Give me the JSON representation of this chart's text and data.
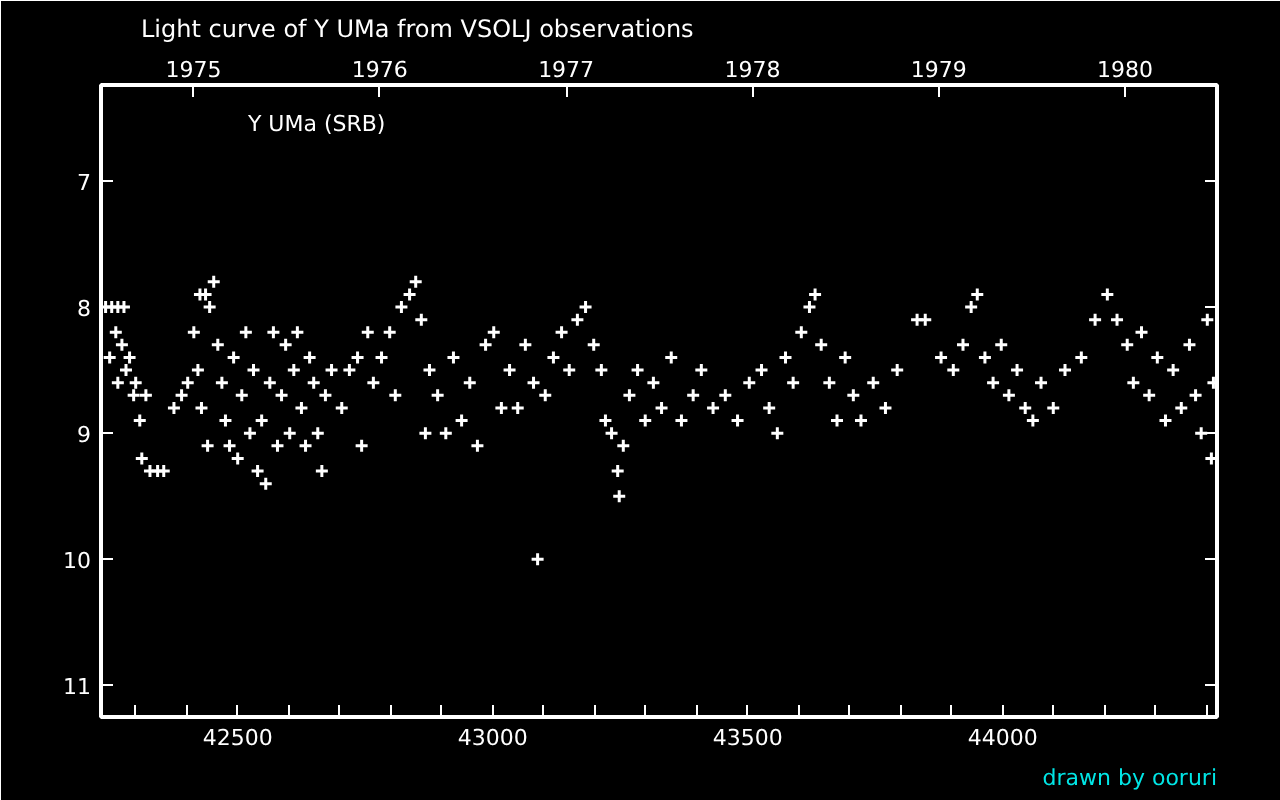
{
  "chart_data": {
    "type": "scatter",
    "title": "Light curve of Y UMa from VSOLJ observations",
    "annotations": [
      "Y UMa (SRB)",
      "drawn by ooruri"
    ],
    "marker": "cross",
    "grid": false,
    "xlim": [
      42232,
      44420
    ],
    "xticks": [
      {
        "value": 42300,
        "label": null
      },
      {
        "value": 42400,
        "label": null
      },
      42500,
      {
        "value": 42600,
        "label": null
      },
      {
        "value": 42700,
        "label": null
      },
      {
        "value": 42800,
        "label": null
      },
      {
        "value": 42900,
        "label": null
      },
      43000,
      {
        "value": 43100,
        "label": null
      },
      {
        "value": 43200,
        "label": null
      },
      {
        "value": 43300,
        "label": null
      },
      {
        "value": 43400,
        "label": null
      },
      43500,
      {
        "value": 43600,
        "label": null
      },
      {
        "value": 43700,
        "label": null
      },
      {
        "value": 43800,
        "label": null
      },
      {
        "value": 43900,
        "label": null
      },
      44000,
      {
        "value": 44100,
        "label": null
      },
      {
        "value": 44200,
        "label": null
      },
      {
        "value": 44300,
        "label": null
      },
      {
        "value": 44400,
        "label": null
      }
    ],
    "x2lim": [
      1974.503,
      1980.494
    ],
    "x2ticks": [
      1975,
      1976,
      1977,
      1978,
      1979,
      1980
    ],
    "ylim": [
      11.25,
      6.24
    ],
    "yticks": [
      7,
      8,
      9,
      10,
      11
    ],
    "series": [
      {
        "color": "#ffffff",
        "x": [
          42241,
          42253,
          42265,
          42277,
          42249,
          42261,
          42265,
          42273,
          42281,
          42288,
          42296,
          42300,
          42308,
          42312,
          42328,
          42343,
          42355,
          42320,
          42375,
          42390,
          42402,
          42414,
          42426,
          42437,
          42445,
          42453,
          42422,
          42429,
          42441,
          42461,
          42469,
          42476,
          42484,
          42492,
          42500,
          42508,
          42516,
          42524,
          42531,
          42539,
          42547,
          42555,
          42563,
          42570,
          42578,
          42586,
          42594,
          42602,
          42610,
          42617,
          42625,
          42633,
          42641,
          42649,
          42657,
          42665,
          42672,
          42684,
          42704,
          42719,
          42735,
          42743,
          42755,
          42766,
          42782,
          42798,
          42809,
          42821,
          42837,
          42849,
          42860,
          42868,
          42876,
          42892,
          42908,
          42923,
          42939,
          42955,
          42970,
          42986,
          43002,
          43017,
          43033,
          43049,
          43064,
          43080,
          43088,
          43103,
          43119,
          43135,
          43150,
          43166,
          43182,
          43198,
          43213,
          43221,
          43233,
          43245,
          43248,
          43256,
          43268,
          43284,
          43299,
          43315,
          43331,
          43350,
          43370,
          43393,
          43409,
          43432,
          43456,
          43480,
          43503,
          43527,
          43542,
          43558,
          43574,
          43589,
          43605,
          43621,
          43632,
          43644,
          43660,
          43675,
          43691,
          43707,
          43722,
          43746,
          43770,
          43793,
          43832,
          43848,
          43879,
          43903,
          43922,
          43938,
          43950,
          43965,
          43981,
          43997,
          44012,
          44028,
          44044,
          44059,
          44075,
          44099,
          44122,
          44154,
          44181,
          44205,
          44224,
          44244,
          44256,
          44272,
          44287,
          44303,
          44319,
          44334,
          44350,
          44366,
          44378,
          44389,
          44401,
          44409,
          44413
        ],
        "values": [
          8.0,
          8.0,
          8.0,
          8.0,
          8.4,
          8.2,
          8.6,
          8.3,
          8.5,
          8.4,
          8.7,
          8.6,
          8.9,
          9.2,
          9.3,
          9.3,
          9.3,
          8.7,
          8.8,
          8.7,
          8.6,
          8.2,
          7.9,
          7.9,
          8.0,
          7.8,
          8.5,
          8.8,
          9.1,
          8.3,
          8.6,
          8.9,
          9.1,
          8.4,
          9.2,
          8.7,
          8.2,
          9.0,
          8.5,
          9.3,
          8.9,
          9.4,
          8.6,
          8.2,
          9.1,
          8.7,
          8.3,
          9.0,
          8.5,
          8.2,
          8.8,
          9.1,
          8.4,
          8.6,
          9.0,
          9.3,
          8.7,
          8.5,
          8.8,
          8.5,
          8.4,
          9.1,
          8.2,
          8.6,
          8.4,
          8.2,
          8.7,
          8.0,
          7.9,
          7.8,
          8.1,
          9.0,
          8.5,
          8.7,
          9.0,
          8.4,
          8.9,
          8.6,
          9.1,
          8.3,
          8.2,
          8.8,
          8.5,
          8.8,
          8.3,
          8.6,
          10.0,
          8.7,
          8.4,
          8.2,
          8.5,
          8.1,
          8.0,
          8.3,
          8.5,
          8.9,
          9.0,
          9.3,
          9.5,
          9.1,
          8.7,
          8.5,
          8.9,
          8.6,
          8.8,
          8.4,
          8.9,
          8.7,
          8.5,
          8.8,
          8.7,
          8.9,
          8.6,
          8.5,
          8.8,
          9.0,
          8.4,
          8.6,
          8.2,
          8.0,
          7.9,
          8.3,
          8.6,
          8.9,
          8.4,
          8.7,
          8.9,
          8.6,
          8.8,
          8.5,
          8.1,
          8.1,
          8.4,
          8.5,
          8.3,
          8.0,
          7.9,
          8.4,
          8.6,
          8.3,
          8.7,
          8.5,
          8.8,
          8.9,
          8.6,
          8.8,
          8.5,
          8.4,
          8.1,
          7.9,
          8.1,
          8.3,
          8.6,
          8.2,
          8.7,
          8.4,
          8.9,
          8.5,
          8.8,
          8.3,
          8.7,
          9.0,
          8.1,
          9.2,
          8.6
        ]
      }
    ]
  }
}
